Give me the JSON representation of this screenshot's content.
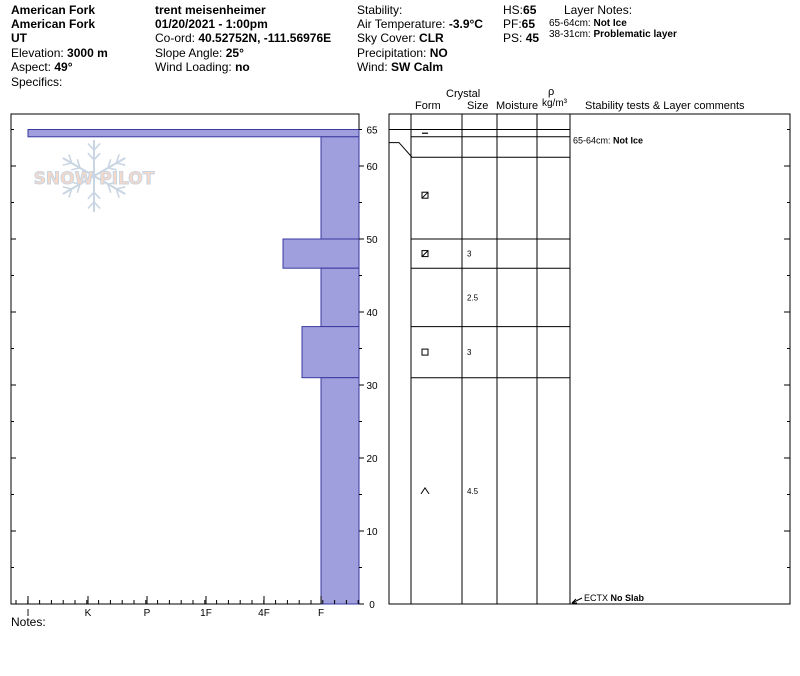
{
  "header": {
    "col1": {
      "location": "American Fork",
      "range": "American Fork",
      "state": "UT",
      "elevation_label": "Elevation:",
      "elevation_value": "3000 m",
      "aspect_label": "Aspect:",
      "aspect_value": "49°",
      "specifics_label": "Specifics:"
    },
    "col2": {
      "observer": "trent meisenheimer",
      "datetime": "01/20/2021 - 1:00pm",
      "coord_label": "Co-ord:",
      "coord_value": "40.52752N, -111.56976E",
      "slope_label": "Slope Angle:",
      "slope_value": "25°",
      "wind_loading_label": "Wind Loading:",
      "wind_loading_value": "no"
    },
    "col3": {
      "stability_label": "Stability:",
      "air_temp_label": "Air Temperature:",
      "air_temp_value": "-3.9°C",
      "sky_label": "Sky Cover:",
      "sky_value": "CLR",
      "precip_label": "Precipitation:",
      "precip_value": "NO",
      "wind_label": "Wind:",
      "wind_value": "SW Calm"
    },
    "col4": {
      "hs_label": "HS:",
      "hs_value": "65",
      "pf_label": "PF:",
      "pf_value": "65",
      "ps_label": "PS:",
      "ps_value": "45"
    },
    "layer_notes": {
      "title": "Layer Notes:",
      "notes": [
        {
          "range": "65-64cm:",
          "text": "Not Ice"
        },
        {
          "range": "38-31cm:",
          "text": "Problematic layer"
        }
      ]
    }
  },
  "table_headers": {
    "crystal": "Crystal",
    "form": "Form",
    "size": "Size",
    "moisture": "Moisture",
    "rho": "ρ",
    "density_unit": "kg/m³",
    "comments": "Stability tests & Layer comments"
  },
  "logo_text": "SNOW PILOT",
  "notes_label": "Notes:",
  "colors": {
    "bar_fill": "#9f9fdd",
    "bar_stroke": "#3a3aa0",
    "logo_fill": "#f6d9c8",
    "logo_stroke": "#c9d5e2"
  },
  "chart_data": {
    "type": "bar",
    "orientation": "horizontal",
    "y_axis": {
      "range": [
        0,
        65
      ],
      "ticks": [
        0,
        10,
        20,
        30,
        40,
        50,
        60,
        65
      ],
      "label": ""
    },
    "x_axis": {
      "categories": [
        "I",
        "K",
        "P",
        "1F",
        "4F",
        "F"
      ],
      "label": ""
    },
    "hardness_layers": [
      {
        "top": 65,
        "bottom": 64,
        "hardness": "I"
      },
      {
        "top": 64,
        "bottom": 50,
        "hardness": "F"
      },
      {
        "top": 50,
        "bottom": 46,
        "hardness": "4F+"
      },
      {
        "top": 46,
        "bottom": 38,
        "hardness": "F"
      },
      {
        "top": 38,
        "bottom": 31,
        "hardness": "F+"
      },
      {
        "top": 31,
        "bottom": 0,
        "hardness": "F"
      }
    ],
    "layer_lines": [
      65,
      64,
      50,
      46,
      38,
      31
    ],
    "layers": [
      {
        "depth": 64.5,
        "form": "ice",
        "size": ""
      },
      {
        "depth": 56,
        "form": "rounded-facet",
        "size": ""
      },
      {
        "depth": 48,
        "form": "rounded-facet",
        "size": "3"
      },
      {
        "depth": 42,
        "form": "",
        "size": "2.5"
      },
      {
        "depth": 34.5,
        "form": "facet",
        "size": "3"
      },
      {
        "depth": 15.5,
        "form": "depth-hoar",
        "size": "4.5"
      }
    ],
    "comments": [
      {
        "depth": 63.5,
        "range": "65-64cm:",
        "text": "Not Ice"
      }
    ],
    "tests": [
      {
        "depth": 0,
        "code": "ECTX",
        "result": "No Slab"
      }
    ]
  }
}
